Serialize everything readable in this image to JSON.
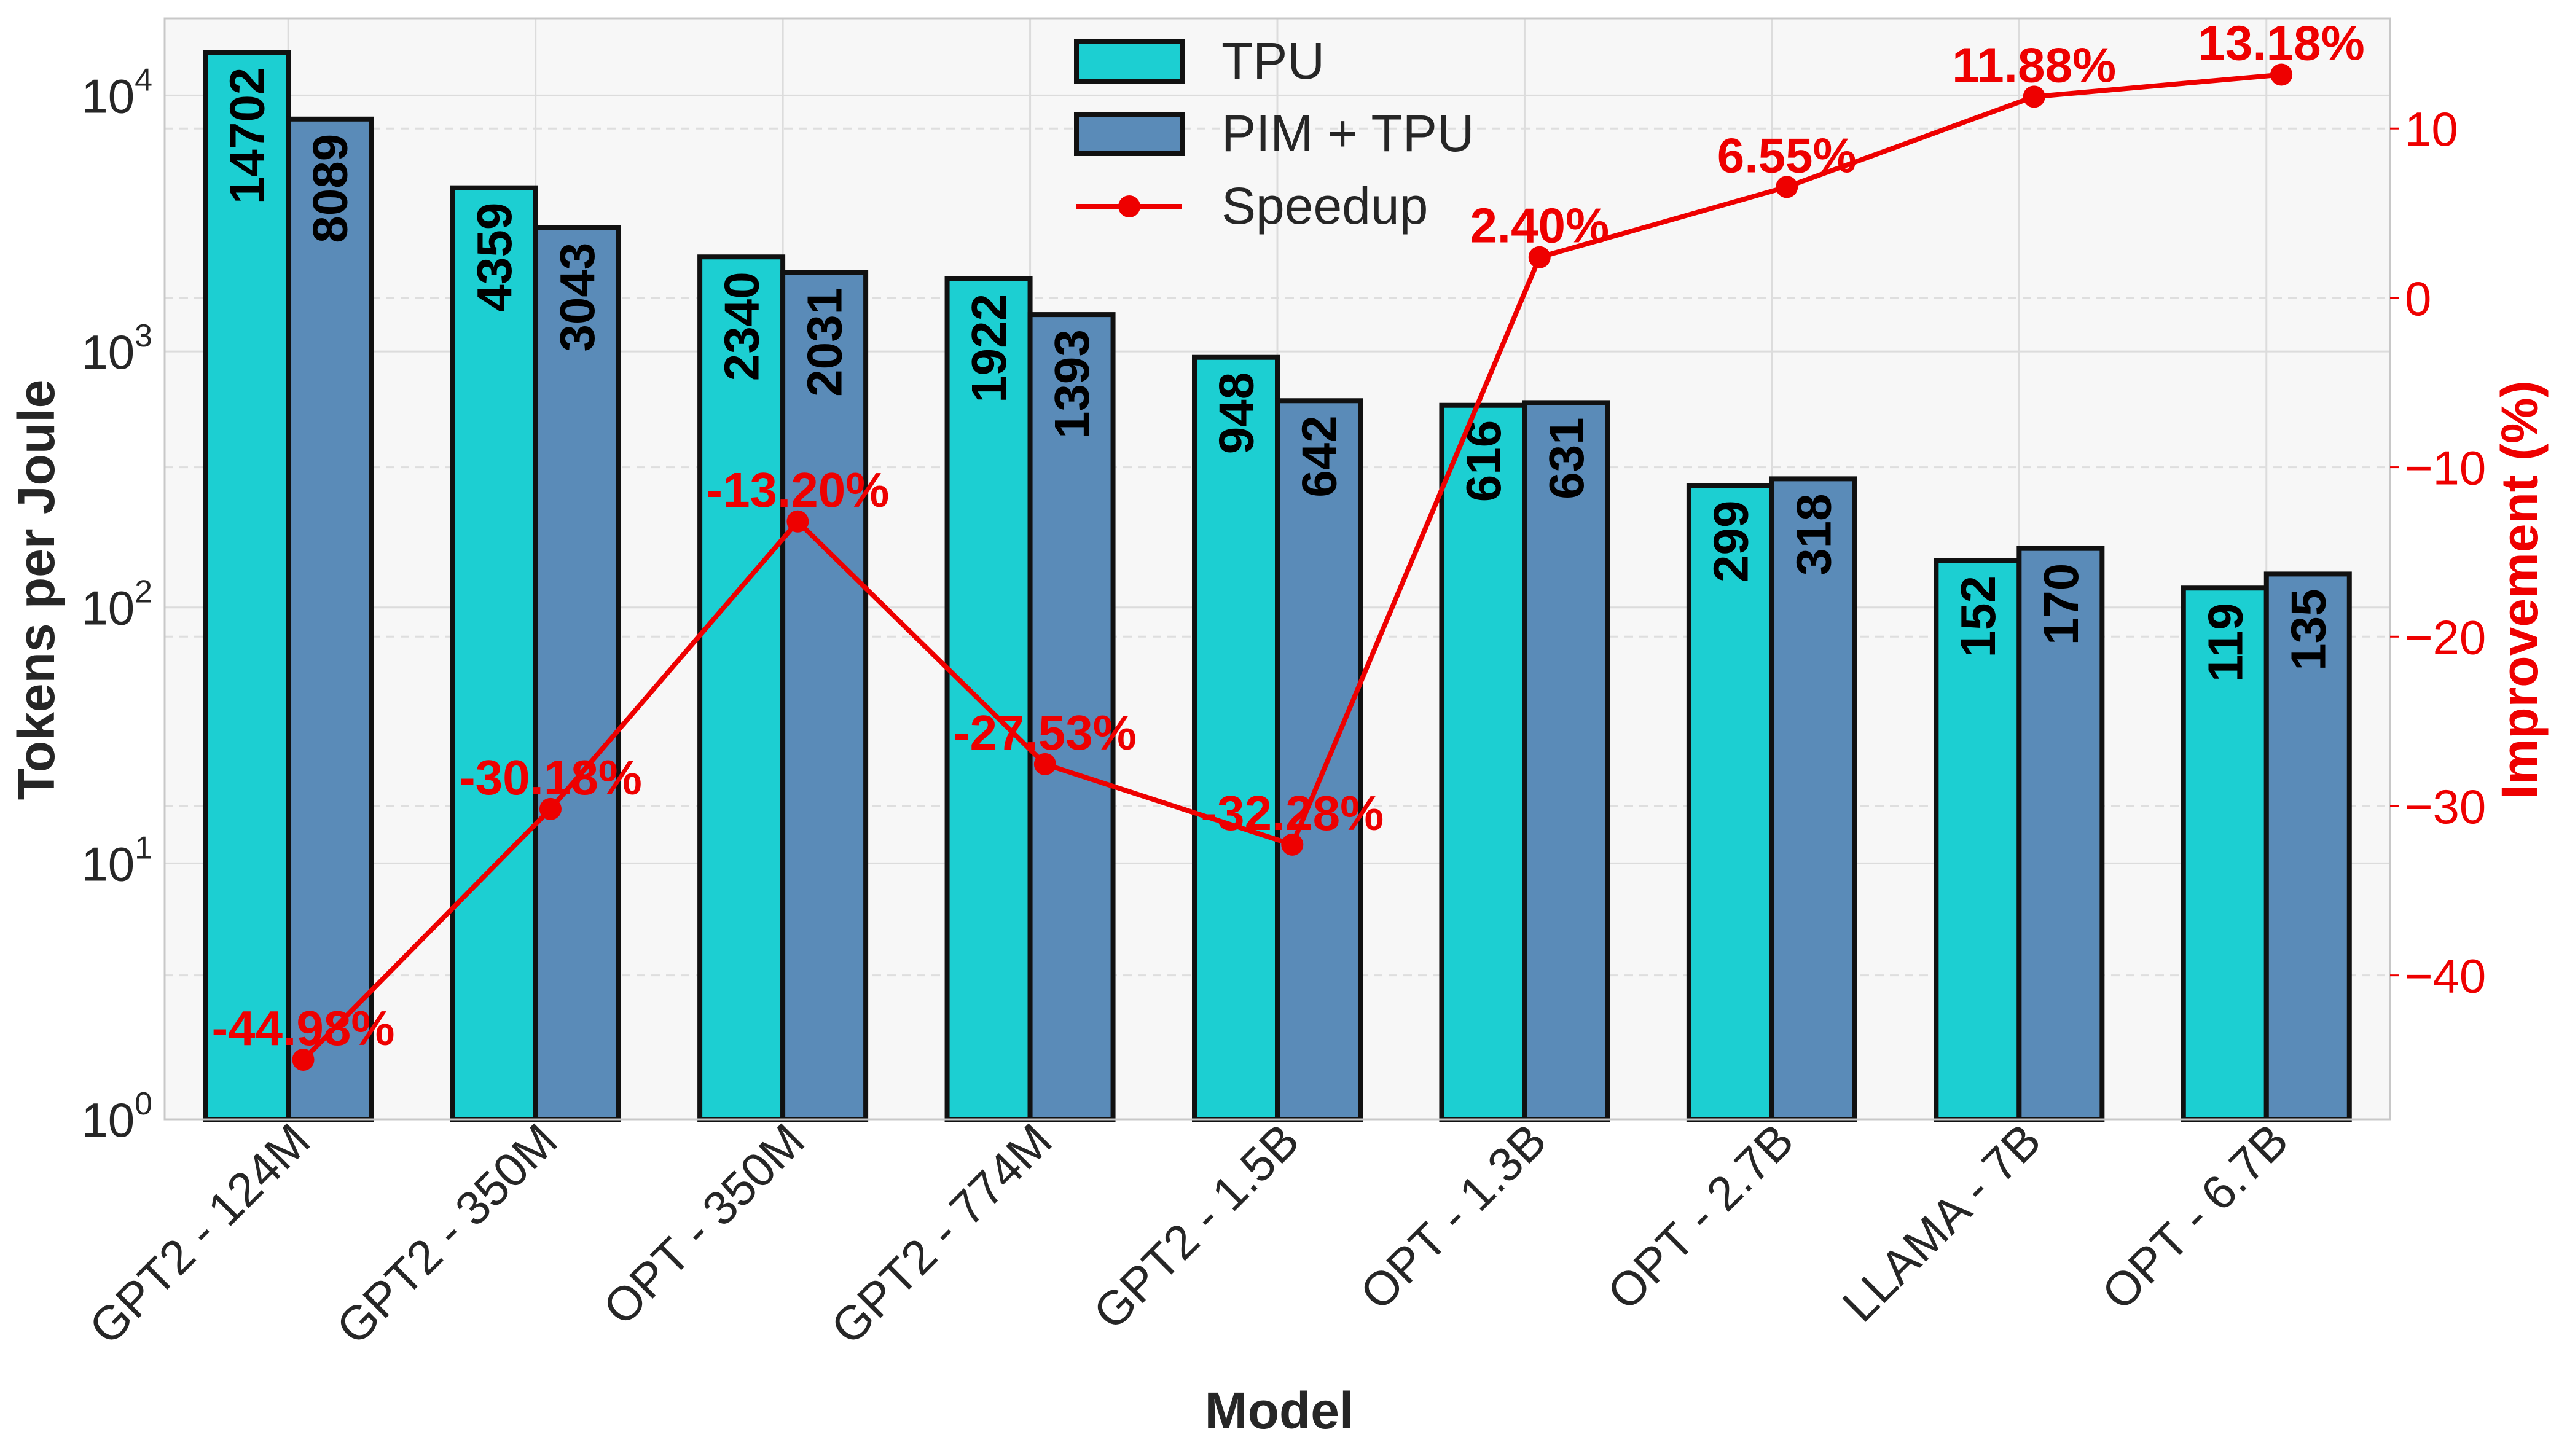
{
  "chart_data": {
    "type": "bar",
    "title": "",
    "xlabel": "Model",
    "ylabel": "Tokens per Joule",
    "y2label": "Improvement (%)",
    "yscale": "log",
    "ylim": [
      1,
      20000
    ],
    "y2lim": [
      -48.5,
      16.5
    ],
    "y_ticks": [
      {
        "base": "10",
        "exp": "0",
        "value": 1
      },
      {
        "base": "10",
        "exp": "1",
        "value": 10
      },
      {
        "base": "10",
        "exp": "2",
        "value": 100
      },
      {
        "base": "10",
        "exp": "3",
        "value": 1000
      },
      {
        "base": "10",
        "exp": "4",
        "value": 10000
      }
    ],
    "y2_ticks": [
      "10",
      "0",
      "−10",
      "−20",
      "−30",
      "−40"
    ],
    "y2_tick_values": [
      10,
      0,
      -10,
      -20,
      -30,
      -40
    ],
    "grid": true,
    "legend_position": "top-center",
    "categories": [
      "GPT2 - 124M",
      "GPT2 - 350M",
      "OPT - 350M",
      "GPT2 - 774M",
      "GPT2 - 1.5B",
      "OPT - 1.3B",
      "OPT - 2.7B",
      "LLAMA - 7B",
      "OPT - 6.7B"
    ],
    "series": [
      {
        "name": "TPU",
        "axis": "left",
        "kind": "bar",
        "color": "#1ccfd2",
        "values": [
          14702,
          4359,
          2340,
          1922,
          948,
          616,
          299,
          152,
          119
        ],
        "labels": [
          "14702",
          "4359",
          "2340",
          "1922",
          "948",
          "616",
          "299",
          "152",
          "119"
        ]
      },
      {
        "name": "PIM + TPU",
        "axis": "right-bars",
        "kind": "bar",
        "color": "#5a8bb8",
        "values": [
          8089,
          3043,
          2031,
          1393,
          642,
          631,
          318,
          170,
          135
        ],
        "labels": [
          "8089",
          "3043",
          "2031",
          "1393",
          "642",
          "631",
          "318",
          "170",
          "135"
        ]
      },
      {
        "name": "Speedup",
        "axis": "right",
        "kind": "line",
        "color": "#ee0000",
        "values": [
          -44.98,
          -30.18,
          -13.2,
          -27.53,
          -32.28,
          2.4,
          6.55,
          11.88,
          13.18
        ],
        "labels": [
          "-44.98%",
          "-30.18%",
          "-13.20%",
          "-27.53%",
          "-32.28%",
          "2.40%",
          "6.55%",
          "11.88%",
          "13.18%"
        ]
      }
    ]
  }
}
